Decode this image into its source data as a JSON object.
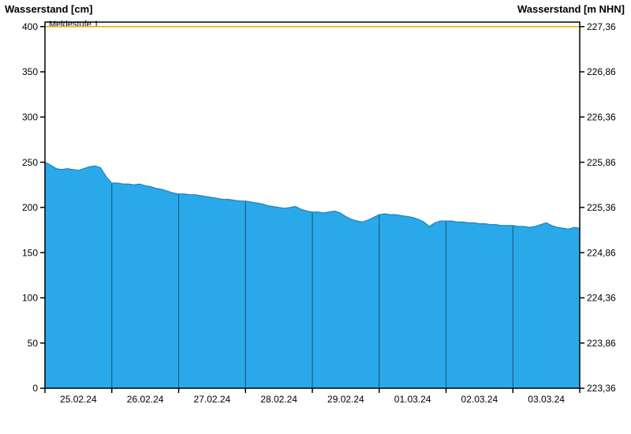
{
  "chart_data": {
    "type": "area",
    "title": "",
    "ylabel_left": "Wasserstand [cm]",
    "ylabel_right": "Wasserstand [m NHN]",
    "ylim_left": [
      0,
      400
    ],
    "left_tick_values": [
      0,
      50,
      100,
      150,
      200,
      250,
      300,
      350,
      400
    ],
    "right_tick_labels": [
      "223,36",
      "223,86",
      "224,36",
      "224,86",
      "225,36",
      "225,86",
      "226,36",
      "226,86",
      "227,36"
    ],
    "categories": [
      "25.02.24",
      "26.02.24",
      "27.02.24",
      "28.02.24",
      "29.02.24",
      "01.03.24",
      "02.03.24",
      "03.03.24"
    ],
    "threshold": {
      "label": "Meldestufe 1",
      "value": 400,
      "color": "#F2A900"
    },
    "grid": false,
    "legend": "none",
    "series": [
      {
        "name": "Wasserstand",
        "unit": "cm",
        "samples_per_day": 12,
        "values": [
          250,
          247,
          243,
          242,
          243,
          242,
          241,
          243,
          245,
          246,
          244,
          234,
          227,
          227,
          226,
          226,
          225,
          226,
          224,
          223,
          221,
          220,
          218,
          216,
          215,
          215,
          214,
          214,
          213,
          212,
          211,
          210,
          209,
          209,
          208,
          207,
          207,
          206,
          205,
          204,
          202,
          201,
          200,
          199,
          200,
          201,
          198,
          196,
          195,
          195,
          194,
          195,
          196,
          194,
          190,
          187,
          185,
          184,
          186,
          189,
          192,
          193,
          192,
          192,
          191,
          190,
          189,
          187,
          184,
          179,
          183,
          185,
          185,
          185,
          184,
          184,
          183,
          183,
          182,
          182,
          181,
          181,
          180,
          180,
          180,
          179,
          179,
          178,
          179,
          181,
          183,
          180,
          178,
          177,
          176,
          178,
          177
        ]
      }
    ],
    "colors": {
      "fill": "#29A9E9",
      "edge": "#1577B5",
      "separator": "#1C4E6E",
      "frame": "#000000",
      "background": "#FFFFFF"
    }
  }
}
